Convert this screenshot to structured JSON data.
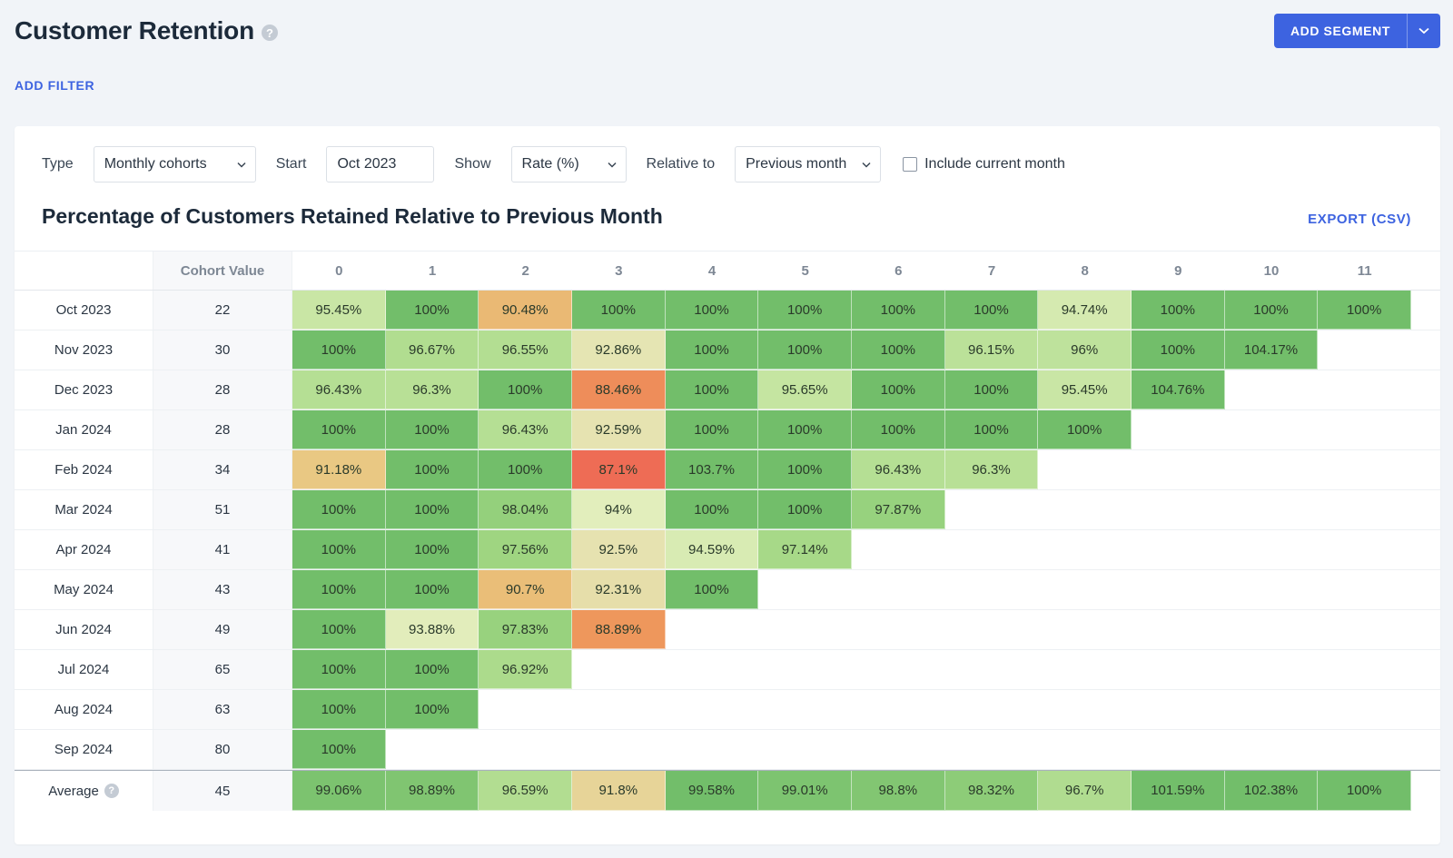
{
  "header": {
    "title": "Customer Retention",
    "help_icon": "help-circle-icon",
    "add_segment_label": "ADD SEGMENT"
  },
  "filters": {
    "add_filter_label": "ADD FILTER"
  },
  "controls": {
    "type_label": "Type",
    "type_value": "Monthly cohorts",
    "start_label": "Start",
    "start_value": "Oct 2023",
    "show_label": "Show",
    "show_value": "Rate (%)",
    "relative_label": "Relative to",
    "relative_value": "Previous month",
    "include_current_label": "Include current month",
    "include_current_checked": false
  },
  "report": {
    "title": "Percentage of Customers Retained Relative to Previous Month",
    "export_label": "EXPORT (CSV)"
  },
  "colors": {
    "accent": "#3d63e0",
    "heat_high": "#72be6a",
    "heat_mid": "#e3e9b6",
    "heat_low": "#ee6a55"
  },
  "chart_data": {
    "type": "heatmap",
    "title": "Percentage of Customers Retained Relative to Previous Month",
    "value_header": "Cohort Value",
    "columns": [
      "0",
      "1",
      "2",
      "3",
      "4",
      "5",
      "6",
      "7",
      "8",
      "9",
      "10",
      "11"
    ],
    "rows": [
      {
        "label": "Oct 2023",
        "value": "22",
        "cells": [
          "95.45%",
          "100%",
          "90.48%",
          "100%",
          "100%",
          "100%",
          "100%",
          "100%",
          "94.74%",
          "100%",
          "100%",
          "100%"
        ]
      },
      {
        "label": "Nov 2023",
        "value": "30",
        "cells": [
          "100%",
          "96.67%",
          "96.55%",
          "92.86%",
          "100%",
          "100%",
          "100%",
          "96.15%",
          "96%",
          "100%",
          "104.17%"
        ]
      },
      {
        "label": "Dec 2023",
        "value": "28",
        "cells": [
          "96.43%",
          "96.3%",
          "100%",
          "88.46%",
          "100%",
          "95.65%",
          "100%",
          "100%",
          "95.45%",
          "104.76%"
        ]
      },
      {
        "label": "Jan 2024",
        "value": "28",
        "cells": [
          "100%",
          "100%",
          "96.43%",
          "92.59%",
          "100%",
          "100%",
          "100%",
          "100%",
          "100%"
        ]
      },
      {
        "label": "Feb 2024",
        "value": "34",
        "cells": [
          "91.18%",
          "100%",
          "100%",
          "87.1%",
          "103.7%",
          "100%",
          "96.43%",
          "96.3%"
        ]
      },
      {
        "label": "Mar 2024",
        "value": "51",
        "cells": [
          "100%",
          "100%",
          "98.04%",
          "94%",
          "100%",
          "100%",
          "97.87%"
        ]
      },
      {
        "label": "Apr 2024",
        "value": "41",
        "cells": [
          "100%",
          "100%",
          "97.56%",
          "92.5%",
          "94.59%",
          "97.14%"
        ]
      },
      {
        "label": "May 2024",
        "value": "43",
        "cells": [
          "100%",
          "100%",
          "90.7%",
          "92.31%",
          "100%"
        ]
      },
      {
        "label": "Jun 2024",
        "value": "49",
        "cells": [
          "100%",
          "93.88%",
          "97.83%",
          "88.89%"
        ]
      },
      {
        "label": "Jul 2024",
        "value": "65",
        "cells": [
          "100%",
          "100%",
          "96.92%"
        ]
      },
      {
        "label": "Aug 2024",
        "value": "63",
        "cells": [
          "100%",
          "100%"
        ]
      },
      {
        "label": "Sep 2024",
        "value": "80",
        "cells": [
          "100%"
        ]
      }
    ],
    "average": {
      "label": "Average",
      "value": "45",
      "cells": [
        "99.06%",
        "98.89%",
        "96.59%",
        "91.8%",
        "99.58%",
        "99.01%",
        "98.8%",
        "98.32%",
        "96.7%",
        "101.59%",
        "102.38%",
        "100%"
      ]
    }
  }
}
